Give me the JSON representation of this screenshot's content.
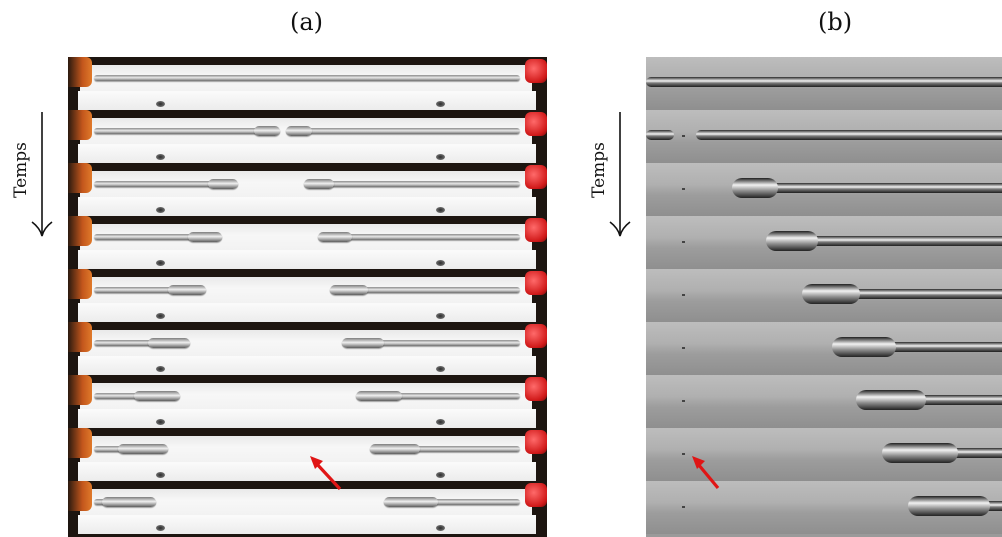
{
  "panels": [
    {
      "label": "(a)",
      "time_label": "Temps"
    },
    {
      "label": "(b)",
      "time_label": "Temps"
    }
  ],
  "colors": {
    "arrow": "#e01515",
    "clamp_left": "#d96a22",
    "clamp_right": "#d11a1a"
  }
}
